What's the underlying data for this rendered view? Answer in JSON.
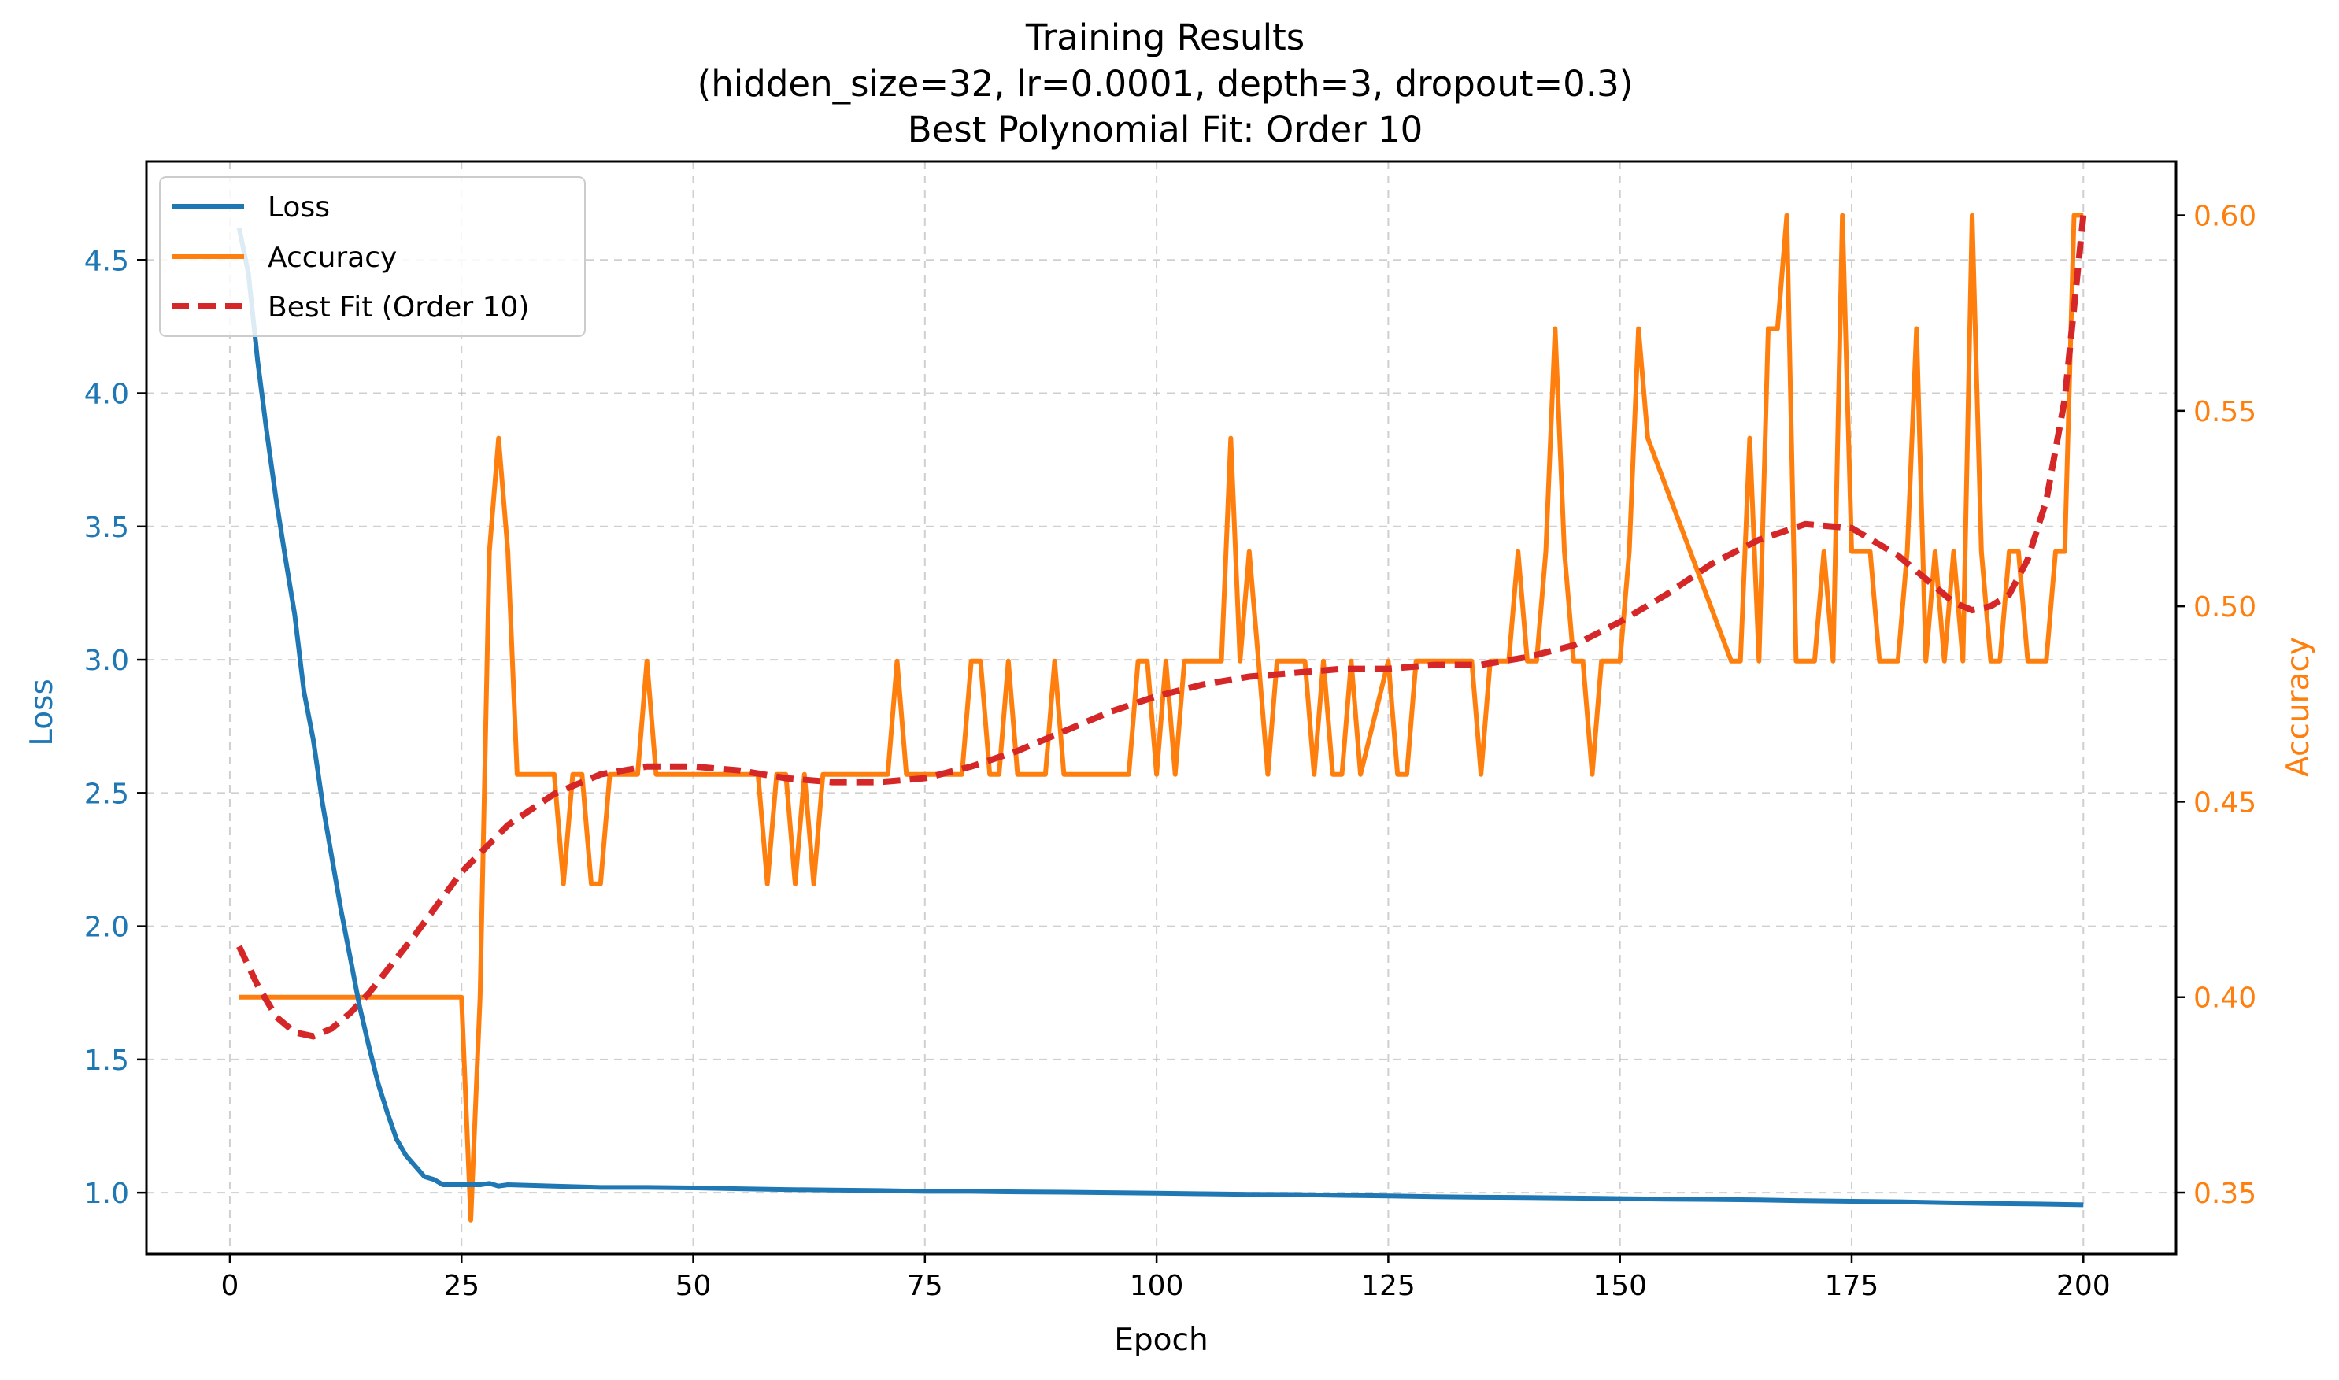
{
  "chart_data": {
    "type": "line",
    "title_lines": [
      "Training Results",
      "(hidden_size=32, lr=0.0001, depth=3, dropout=0.3)",
      "Best Polynomial Fit: Order 10"
    ],
    "xlabel": "Epoch",
    "ylabel_left": "Loss",
    "ylabel_right": "Accuracy",
    "xlim": [
      -9,
      210
    ],
    "ylim_left": [
      0.77,
      4.87
    ],
    "ylim_right": [
      0.3343,
      0.6138
    ],
    "x_ticks": [
      0,
      25,
      50,
      75,
      100,
      125,
      150,
      175,
      200
    ],
    "y_ticks_left": [
      1.0,
      1.5,
      2.0,
      2.5,
      3.0,
      3.5,
      4.0,
      4.5
    ],
    "y_ticks_right": [
      0.35,
      0.4,
      0.45,
      0.5,
      0.55,
      0.6
    ],
    "y_tick_labels_left": [
      "1.0",
      "1.5",
      "2.0",
      "2.5",
      "3.0",
      "3.5",
      "4.0",
      "4.5"
    ],
    "y_tick_labels_right": [
      "0.35",
      "0.40",
      "0.45",
      "0.50",
      "0.55",
      "0.60"
    ],
    "grid": true,
    "legend_position": "upper-left",
    "colors": {
      "loss": "#1f77b4",
      "accuracy": "#ff7f0e",
      "fit": "#d62728"
    },
    "series": [
      {
        "name": "Loss",
        "axis": "left",
        "style": "solid",
        "x": [
          1,
          2,
          3,
          4,
          5,
          6,
          7,
          8,
          9,
          10,
          11,
          12,
          13,
          14,
          15,
          16,
          17,
          18,
          19,
          20,
          21,
          22,
          23,
          24,
          25,
          26,
          27,
          28,
          29,
          30,
          35,
          40,
          45,
          50,
          55,
          60,
          65,
          70,
          75,
          80,
          85,
          90,
          95,
          100,
          105,
          110,
          115,
          120,
          125,
          130,
          135,
          140,
          145,
          150,
          155,
          160,
          165,
          170,
          175,
          180,
          185,
          190,
          195,
          200
        ],
        "values": [
          4.62,
          4.45,
          4.12,
          3.85,
          3.6,
          3.38,
          3.17,
          2.88,
          2.7,
          2.46,
          2.26,
          2.06,
          1.88,
          1.7,
          1.55,
          1.41,
          1.3,
          1.2,
          1.14,
          1.1,
          1.06,
          1.05,
          1.03,
          1.03,
          1.03,
          1.03,
          1.03,
          1.035,
          1.025,
          1.03,
          1.025,
          1.02,
          1.02,
          1.018,
          1.015,
          1.012,
          1.01,
          1.008,
          1.005,
          1.005,
          1.003,
          1.002,
          1.0,
          0.998,
          0.996,
          0.994,
          0.993,
          0.99,
          0.988,
          0.985,
          0.983,
          0.982,
          0.98,
          0.978,
          0.976,
          0.975,
          0.973,
          0.97,
          0.968,
          0.966,
          0.963,
          0.96,
          0.958,
          0.955
        ]
      },
      {
        "name": "Accuracy",
        "axis": "right",
        "style": "solid",
        "x": [
          1,
          25,
          26,
          27,
          28,
          29,
          30,
          31,
          35,
          36,
          37,
          38,
          39,
          40,
          41,
          44,
          45,
          46,
          57,
          58,
          59,
          60,
          61,
          62,
          63,
          64,
          71,
          72,
          73,
          79,
          80,
          81,
          82,
          83,
          84,
          85,
          88,
          89,
          90,
          97,
          98,
          99,
          100,
          101,
          102,
          103,
          107,
          108,
          109,
          110,
          111,
          112,
          113,
          116,
          117,
          118,
          119,
          120,
          121,
          122,
          125,
          126,
          127,
          128,
          134,
          135,
          136,
          138,
          139,
          140,
          141,
          142,
          143,
          144,
          145,
          146,
          147,
          148,
          149,
          150,
          151,
          152,
          153,
          162,
          163,
          164,
          165,
          166,
          167,
          168,
          169,
          170,
          171,
          172,
          173,
          174,
          175,
          176,
          177,
          178,
          179,
          180,
          181,
          182,
          183,
          184,
          185,
          186,
          187,
          188,
          189,
          190,
          191,
          192,
          193,
          194,
          195,
          196,
          197,
          198,
          199,
          200
        ],
        "values": [
          0.4,
          0.4,
          0.343,
          0.4,
          0.514,
          0.543,
          0.514,
          0.457,
          0.457,
          0.429,
          0.457,
          0.457,
          0.429,
          0.429,
          0.457,
          0.457,
          0.486,
          0.457,
          0.457,
          0.429,
          0.457,
          0.457,
          0.429,
          0.457,
          0.429,
          0.457,
          0.457,
          0.486,
          0.457,
          0.457,
          0.486,
          0.486,
          0.457,
          0.457,
          0.486,
          0.457,
          0.457,
          0.486,
          0.457,
          0.457,
          0.486,
          0.486,
          0.457,
          0.486,
          0.457,
          0.486,
          0.486,
          0.543,
          0.486,
          0.514,
          0.486,
          0.457,
          0.486,
          0.486,
          0.457,
          0.486,
          0.457,
          0.457,
          0.486,
          0.457,
          0.486,
          0.457,
          0.457,
          0.486,
          0.486,
          0.457,
          0.486,
          0.486,
          0.514,
          0.486,
          0.486,
          0.514,
          0.571,
          0.514,
          0.486,
          0.486,
          0.457,
          0.486,
          0.486,
          0.486,
          0.514,
          0.571,
          0.543,
          0.486,
          0.486,
          0.543,
          0.486,
          0.571,
          0.571,
          0.6,
          0.486,
          0.486,
          0.486,
          0.514,
          0.486,
          0.6,
          0.514,
          0.514,
          0.514,
          0.486,
          0.486,
          0.486,
          0.514,
          0.571,
          0.486,
          0.514,
          0.486,
          0.514,
          0.486,
          0.6,
          0.514,
          0.486,
          0.486,
          0.514,
          0.514,
          0.486,
          0.486,
          0.486,
          0.514,
          0.514,
          0.6,
          0.6
        ]
      },
      {
        "name": "Best Fit (Order 10)",
        "axis": "right",
        "style": "dashed",
        "x": [
          1,
          3,
          5,
          7,
          9,
          11,
          13,
          15,
          17,
          20,
          25,
          30,
          35,
          40,
          45,
          50,
          55,
          60,
          65,
          70,
          75,
          80,
          85,
          90,
          95,
          100,
          105,
          110,
          115,
          120,
          125,
          130,
          135,
          140,
          145,
          150,
          155,
          160,
          165,
          170,
          175,
          180,
          183,
          186,
          188,
          190,
          192,
          194,
          196,
          198,
          200
        ],
        "values": [
          0.413,
          0.403,
          0.395,
          0.391,
          0.39,
          0.392,
          0.396,
          0.401,
          0.407,
          0.416,
          0.432,
          0.444,
          0.452,
          0.457,
          0.459,
          0.459,
          0.458,
          0.456,
          0.455,
          0.455,
          0.456,
          0.459,
          0.463,
          0.468,
          0.473,
          0.477,
          0.48,
          0.482,
          0.483,
          0.484,
          0.484,
          0.485,
          0.485,
          0.487,
          0.49,
          0.496,
          0.503,
          0.511,
          0.517,
          0.521,
          0.52,
          0.513,
          0.507,
          0.501,
          0.499,
          0.5,
          0.503,
          0.512,
          0.527,
          0.553,
          0.6
        ]
      }
    ]
  }
}
